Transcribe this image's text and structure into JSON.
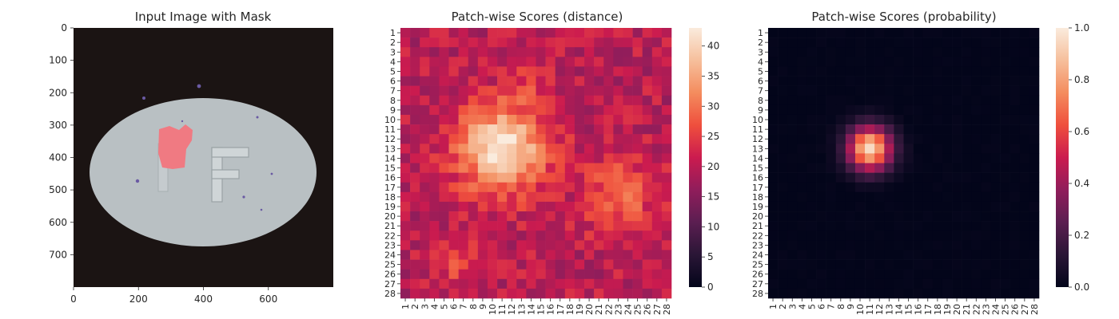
{
  "panels": [
    {
      "title": "Input Image with Mask",
      "type": "image",
      "x_ticks": [
        "0",
        "200",
        "400",
        "600"
      ],
      "y_ticks": [
        "0",
        "100",
        "200",
        "300",
        "400",
        "500",
        "600",
        "700"
      ],
      "xlim": [
        0,
        800
      ],
      "ylim": [
        800,
        0
      ],
      "image_content": "grey oval pill with letter F on dark background, red mask region near x≈300-350, y≈300-420",
      "colors": {
        "background": "#1b1413",
        "pill": "#b9c0c3",
        "mask": "#f07a82"
      }
    },
    {
      "title": "Patch-wise Scores (distance)",
      "type": "heatmap",
      "colormap": "rocket",
      "colorbar_ticks": [
        "0",
        "5",
        "10",
        "15",
        "20",
        "25",
        "30",
        "35",
        "40"
      ],
      "vmin": 0,
      "vmax": 43,
      "axis_labels": [
        "1",
        "2",
        "3",
        "4",
        "5",
        "6",
        "7",
        "8",
        "9",
        "10",
        "11",
        "12",
        "13",
        "14",
        "15",
        "16",
        "17",
        "18",
        "19",
        "20",
        "21",
        "22",
        "23",
        "24",
        "25",
        "26",
        "27",
        "28"
      ]
    },
    {
      "title": "Patch-wise Scores (probability)",
      "type": "heatmap",
      "colormap": "rocket",
      "colorbar_ticks": [
        "0.0",
        "0.2",
        "0.4",
        "0.6",
        "0.8",
        "1.0"
      ],
      "vmin": 0,
      "vmax": 1,
      "axis_labels": [
        "1",
        "2",
        "3",
        "4",
        "5",
        "6",
        "7",
        "8",
        "9",
        "10",
        "11",
        "12",
        "13",
        "14",
        "15",
        "16",
        "17",
        "18",
        "19",
        "20",
        "21",
        "22",
        "23",
        "24",
        "25",
        "26",
        "27",
        "28"
      ]
    }
  ],
  "chart_data": [
    {
      "type": "heatmap",
      "title": "Patch-wise Scores (distance)",
      "rows": 28,
      "cols": 28,
      "value_range": [
        0,
        43
      ],
      "hotspots": [
        {
          "row": 13,
          "col": 11,
          "value": 42,
          "radius": 3.2
        },
        {
          "row": 18,
          "col": 23,
          "value": 29,
          "radius": 2.6
        },
        {
          "row": 8,
          "col": 13,
          "value": 27,
          "radius": 2.2
        },
        {
          "row": 25,
          "col": 6,
          "value": 25,
          "radius": 1.8
        }
      ],
      "baseline": 20
    },
    {
      "type": "heatmap",
      "title": "Patch-wise Scores (probability)",
      "rows": 28,
      "cols": 28,
      "value_range": [
        0,
        1
      ],
      "hotspots": [
        {
          "row": 13,
          "col": 11,
          "value": 0.95,
          "radius": 1.6
        }
      ],
      "baseline": 0
    }
  ]
}
